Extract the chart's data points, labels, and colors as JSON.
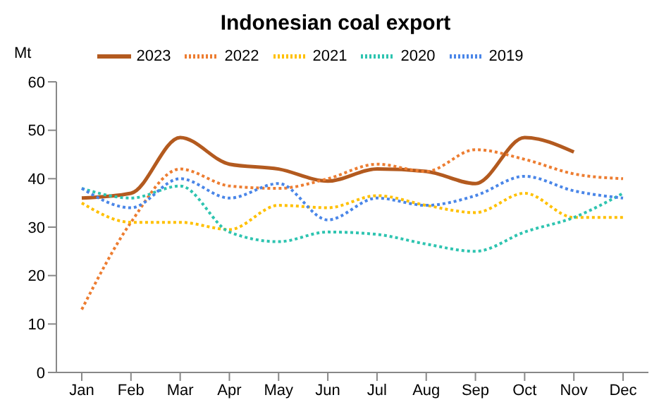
{
  "chart_data": {
    "type": "line",
    "title": "Indonesian coal export",
    "ylabel": "Mt",
    "categories": [
      "Jan",
      "Feb",
      "Mar",
      "Apr",
      "May",
      "Jun",
      "Jul",
      "Aug",
      "Sep",
      "Oct",
      "Nov",
      "Dec"
    ],
    "series": [
      {
        "name": "2023",
        "color": "#b35a1f",
        "line_style": "solid",
        "values": [
          36,
          37,
          48.5,
          43,
          42,
          39.5,
          42,
          41.5,
          39,
          48.5,
          45.5,
          null
        ]
      },
      {
        "name": "2022",
        "color": "#ed7d31",
        "line_style": "dotted",
        "values": [
          13,
          31,
          42,
          38.5,
          38,
          40,
          43,
          41.5,
          46,
          44,
          41,
          40
        ]
      },
      {
        "name": "2021",
        "color": "#ffc000",
        "line_style": "dotted",
        "values": [
          35,
          31,
          31,
          29.5,
          34.5,
          34,
          36.5,
          34.5,
          33,
          37,
          32,
          32
        ]
      },
      {
        "name": "2020",
        "color": "#2ec4b0",
        "line_style": "dotted",
        "values": [
          38,
          36,
          38.5,
          29,
          27,
          29,
          28.5,
          26.5,
          25,
          29,
          32,
          37
        ]
      },
      {
        "name": "2019",
        "color": "#4a86e8",
        "line_style": "dotted",
        "values": [
          38,
          34,
          40,
          36,
          39,
          31.5,
          36,
          34.5,
          36.5,
          40.5,
          37.5,
          36
        ]
      }
    ],
    "ylim": [
      0,
      60
    ],
    "yticks": [
      0,
      10,
      20,
      30,
      40,
      50,
      60
    ],
    "grid": false,
    "legend": "top",
    "marker": "none"
  }
}
